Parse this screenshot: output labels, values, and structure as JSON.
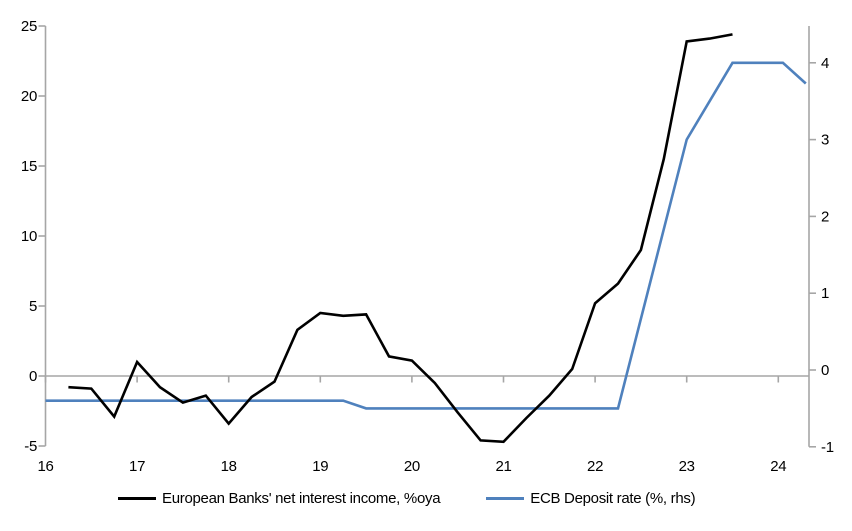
{
  "chart_data": {
    "type": "line",
    "title": "",
    "xlabel": "",
    "ylabel_left": "",
    "ylabel_right": "",
    "grid": false,
    "zero_line": true,
    "legend_position": "bottom",
    "x_axis": {
      "range": [
        16,
        24.45
      ],
      "ticks": [
        16,
        17,
        18,
        19,
        20,
        21,
        22,
        23,
        24
      ]
    },
    "left_axis": {
      "range": [
        -5,
        25
      ],
      "ticks": [
        -5,
        0,
        5,
        10,
        15,
        20,
        25
      ]
    },
    "right_axis": {
      "range": [
        -1,
        4.55
      ],
      "ticks": [
        -1,
        0,
        1,
        2,
        3,
        4
      ]
    },
    "series": [
      {
        "name": "European Banks' net interest income, %oya",
        "axis": "left",
        "color": "#000000",
        "points": [
          [
            16.25,
            -0.8
          ],
          [
            16.5,
            -0.9
          ],
          [
            16.75,
            -2.9
          ],
          [
            17.0,
            1.0
          ],
          [
            17.25,
            -0.8
          ],
          [
            17.5,
            -1.9
          ],
          [
            17.75,
            -1.4
          ],
          [
            18.0,
            -3.4
          ],
          [
            18.25,
            -1.5
          ],
          [
            18.5,
            -0.4
          ],
          [
            18.75,
            3.3
          ],
          [
            19.0,
            4.5
          ],
          [
            19.25,
            4.3
          ],
          [
            19.5,
            4.4
          ],
          [
            19.75,
            1.4
          ],
          [
            20.0,
            1.1
          ],
          [
            20.25,
            -0.5
          ],
          [
            20.5,
            -2.6
          ],
          [
            20.75,
            -4.6
          ],
          [
            21.0,
            -4.7
          ],
          [
            21.25,
            -3.0
          ],
          [
            21.5,
            -1.4
          ],
          [
            21.75,
            0.5
          ],
          [
            22.0,
            5.2
          ],
          [
            22.25,
            6.6
          ],
          [
            22.5,
            9.0
          ],
          [
            22.75,
            15.5
          ],
          [
            23.0,
            23.9
          ],
          [
            23.25,
            24.1
          ],
          [
            23.5,
            24.4
          ]
        ]
      },
      {
        "name": "ECB Deposit rate (%, rhs)",
        "axis": "right",
        "color": "#4f81bd",
        "points": [
          [
            16.0,
            -0.4
          ],
          [
            19.25,
            -0.4
          ],
          [
            19.5,
            -0.5
          ],
          [
            22.25,
            -0.5
          ],
          [
            23.0,
            3.0
          ],
          [
            23.5,
            4.0
          ],
          [
            24.05,
            4.0
          ],
          [
            24.3,
            3.73
          ]
        ]
      }
    ]
  },
  "colors": {
    "axis": "#a6a6a6",
    "zero_line": "#a6a6a6",
    "tick_text": "#000000",
    "background": "#ffffff",
    "nii_line": "#000000",
    "ecb_line": "#4f81bd"
  }
}
